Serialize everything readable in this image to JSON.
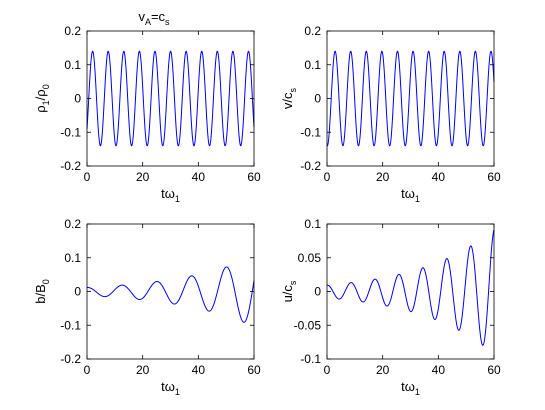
{
  "figure": {
    "title_main": "v",
    "title_sub1": "A",
    "title_mid": "=c",
    "title_sub2": "s",
    "line_color": "#0000ff"
  },
  "chart_data": [
    {
      "type": "line",
      "id": "rho",
      "ylabel_main": "ρ",
      "ylabel_sub1": "1",
      "ylabel_mid": "/ρ",
      "ylabel_sub2": "0",
      "xlabel_main": "tω",
      "xlabel_sub": "1",
      "xlim": [
        0,
        60
      ],
      "ylim": [
        -0.2,
        0.2
      ],
      "xticks": [
        0,
        20,
        40,
        60
      ],
      "yticks": [
        -0.2,
        -0.1,
        0,
        0.1,
        0.2
      ],
      "xtick_labels": [
        "0",
        "20",
        "40",
        "60"
      ],
      "ytick_labels": [
        "-0.2",
        "-0.1",
        "0",
        "0.1",
        "0.2"
      ],
      "function": {
        "form": "sine",
        "amp0": 0.14,
        "growth": 0,
        "period": 5.6,
        "phase": -0.7
      }
    },
    {
      "type": "line",
      "id": "v",
      "ylabel_main": "v/c",
      "ylabel_sub1": "s",
      "ylabel_mid": "",
      "ylabel_sub2": "",
      "xlabel_main": "tω",
      "xlabel_sub": "1",
      "xlim": [
        0,
        60
      ],
      "ylim": [
        -0.2,
        0.2
      ],
      "xticks": [
        0,
        20,
        40,
        60
      ],
      "yticks": [
        -0.2,
        -0.1,
        0,
        0.1,
        0.2
      ],
      "xtick_labels": [
        "0",
        "20",
        "40",
        "60"
      ],
      "ytick_labels": [
        "-0.2",
        "-0.1",
        "0",
        "0.1",
        "0.2"
      ],
      "function": {
        "form": "sine",
        "amp0": 0.14,
        "growth": 0,
        "period": 5.6,
        "phase": -1.7
      }
    },
    {
      "type": "line",
      "id": "b",
      "ylabel_main": "b/B",
      "ylabel_sub1": "0",
      "ylabel_mid": "",
      "ylabel_sub2": "",
      "xlabel_main": "tω",
      "xlabel_sub": "1",
      "xlim": [
        0,
        60
      ],
      "ylim": [
        -0.2,
        0.2
      ],
      "xticks": [
        0,
        20,
        40,
        60
      ],
      "yticks": [
        -0.2,
        -0.1,
        0,
        0.1,
        0.2
      ],
      "xtick_labels": [
        "0",
        "20",
        "40",
        "60"
      ],
      "ytick_labels": [
        "-0.2",
        "-0.1",
        "0",
        "0.1",
        "0.2"
      ],
      "function": {
        "form": "cosine",
        "amp0": 0.012,
        "growth": 0.036,
        "period": 12.5,
        "phase": 0
      }
    },
    {
      "type": "line",
      "id": "u",
      "ylabel_main": "u/c",
      "ylabel_sub1": "s",
      "ylabel_mid": "",
      "ylabel_sub2": "",
      "xlabel_main": "tω",
      "xlabel_sub": "1",
      "xlim": [
        0,
        60
      ],
      "ylim": [
        -0.1,
        0.1
      ],
      "xticks": [
        0,
        20,
        40,
        60
      ],
      "yticks": [
        -0.1,
        -0.05,
        0,
        0.05,
        0.1
      ],
      "xtick_labels": [
        "0",
        "20",
        "40",
        "60"
      ],
      "ytick_labels": [
        "-0.1",
        "-0.05",
        "0",
        "0.05",
        "0.1"
      ],
      "function": {
        "form": "cosine",
        "amp0": 0.0095,
        "growth": 0.038,
        "period": 8.6,
        "phase": 0
      }
    }
  ]
}
